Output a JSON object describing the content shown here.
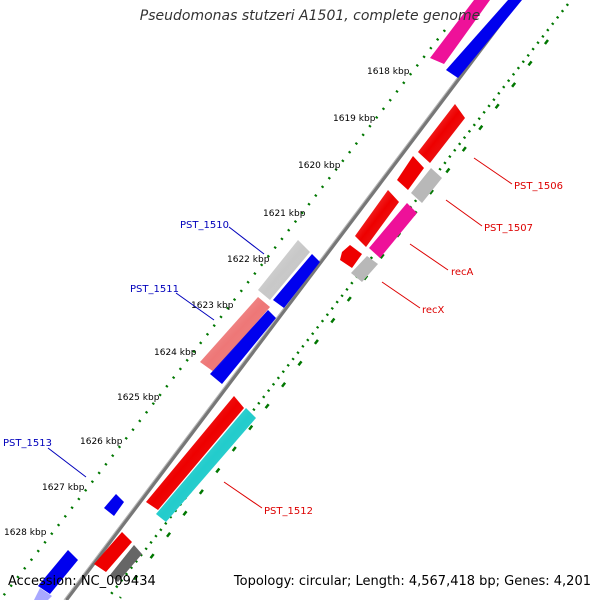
{
  "title": "Pseudomonas stutzeri A1501, complete genome",
  "accession": "Accession: NC_009434",
  "topology": "Topology: circular; Length: 4,567,418 bp; Genes: 4,201",
  "colors": {
    "red": "#ee0000",
    "pink": "#ee1199",
    "blue": "#0000ee",
    "gray": "#b8b8b8",
    "salmon": "#ee7777",
    "cyan": "#22cccc",
    "darkgray": "#666666",
    "label_right": "#dd0000",
    "label_left": "#0000bb",
    "tick": "#007700"
  },
  "kbp_labels": [
    {
      "text": "1618 kbp"
    },
    {
      "text": "1619 kbp"
    },
    {
      "text": "1620 kbp"
    },
    {
      "text": "1621 kbp"
    },
    {
      "text": "1622 kbp"
    },
    {
      "text": "1623 kbp"
    },
    {
      "text": "1624 kbp"
    },
    {
      "text": "1625 kbp"
    },
    {
      "text": "1626 kbp"
    },
    {
      "text": "1627 kbp"
    },
    {
      "text": "1628 kbp"
    }
  ],
  "gene_labels": [
    {
      "text": "PST_1506",
      "side": "right"
    },
    {
      "text": "PST_1507",
      "side": "right"
    },
    {
      "text": "recA",
      "side": "right"
    },
    {
      "text": "recX",
      "side": "right"
    },
    {
      "text": "PST_1512",
      "side": "right"
    },
    {
      "text": "PST_1510",
      "side": "left"
    },
    {
      "text": "PST_1511",
      "side": "left"
    },
    {
      "text": "PST_1513",
      "side": "left"
    }
  ]
}
